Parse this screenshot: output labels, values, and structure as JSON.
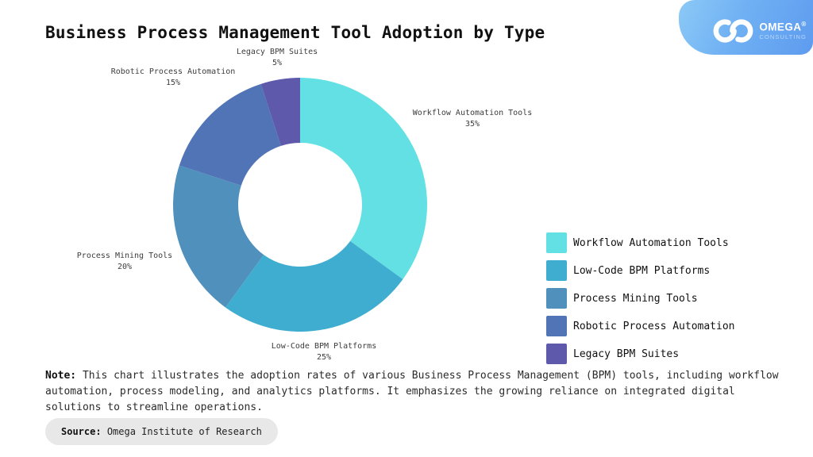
{
  "header": {
    "title": "Business Process Management Tool Adoption by Type",
    "logo": {
      "icon": "infinity-icon",
      "brand": "OMEGA",
      "registered": "®",
      "tagline": "CONSULTING",
      "badge_gradient": [
        "#8cc9f7",
        "#5e9bef"
      ]
    }
  },
  "chart_data": {
    "type": "pie",
    "subtype": "donut",
    "title": "Business Process Management Tool Adoption by Type",
    "categories": [
      "Workflow Automation Tools",
      "Low-Code BPM Platforms",
      "Process Mining Tools",
      "Robotic Process Automation",
      "Legacy BPM Suites"
    ],
    "values": [
      35,
      25,
      20,
      15,
      5
    ],
    "pct_labels": [
      "35%",
      "25%",
      "20%",
      "15%",
      "5%"
    ],
    "unit": "%",
    "colors": [
      "#62e0e4",
      "#3fadcf",
      "#5090bd",
      "#5174b6",
      "#5f59ac"
    ],
    "start_angle_deg": 0,
    "direction": "clockwise",
    "inner_radius_ratio": 0.49,
    "legend_position": "right",
    "slice_labels_outside": true
  },
  "note": {
    "label": "Note:",
    "text": "This chart illustrates the adoption rates of various Business Process Management (BPM) tools, including workflow automation, process modeling, and analytics platforms. It emphasizes the growing reliance on integrated digital solutions to streamline operations."
  },
  "source": {
    "label": "Source:",
    "text": "Omega Institute of Research"
  }
}
